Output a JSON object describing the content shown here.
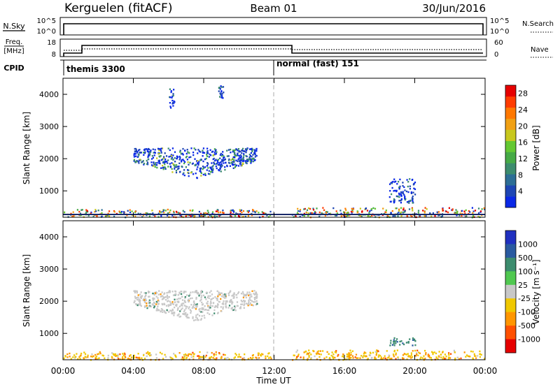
{
  "header": {
    "station": "Kerguelen (fitACF)",
    "beam": "Beam 01",
    "date": "30/Jun/2016"
  },
  "status_panels": {
    "nsky": {
      "label": "N.Sky",
      "tick_top": "10^5",
      "tick_bottom": "10^0",
      "right_label": "N.Search",
      "right_tick_top": "10^5",
      "right_tick_bottom": "10^0"
    },
    "freq": {
      "label_line1": "Freq.",
      "label_line2": "[MHz]",
      "tick_top": "18",
      "tick_bottom": "8",
      "right_label": "Nave",
      "right_tick_top": "60",
      "right_tick_bottom": "0"
    },
    "cpid": {
      "label": "CPID",
      "segments": [
        {
          "name": "themis 3300",
          "start_hour": 0
        },
        {
          "name": "normal (fast) 151",
          "start_hour": 12
        }
      ]
    }
  },
  "chart_data": [
    {
      "type": "heatmap",
      "ylabel": "Slant Range [km]",
      "yticks": [
        "1000",
        "2000",
        "3000",
        "4000"
      ],
      "ylim": [
        180,
        4500
      ],
      "colorbar": {
        "label": "Power [dB]",
        "ticks": [
          "4",
          "8",
          "12",
          "16",
          "20",
          "24",
          "28"
        ],
        "range": [
          0,
          30
        ],
        "colors": [
          "#0a28e6",
          "#1e46b4",
          "#2d6e96",
          "#3c8c6e",
          "#46aa46",
          "#64c832",
          "#c8c81e",
          "#f0a014",
          "#ff7800",
          "#ff3c00",
          "#e60000"
        ]
      },
      "echo_regions": [
        {
          "hours": [
            4.0,
            11.0
          ],
          "range_km": [
            1400,
            2350
          ],
          "level": "low-mid"
        },
        {
          "hours": [
            0.0,
            11.8
          ],
          "range_km": [
            200,
            450
          ],
          "level": "mixed"
        },
        {
          "hours": [
            13.0,
            24.0
          ],
          "range_km": [
            200,
            500
          ],
          "level": "mixed"
        },
        {
          "hours": [
            18.5,
            20.0
          ],
          "range_km": [
            650,
            1400
          ],
          "level": "low"
        },
        {
          "hours": [
            6.0,
            6.3
          ],
          "range_km": [
            3600,
            4200
          ],
          "level": "low"
        },
        {
          "hours": [
            8.8,
            9.1
          ],
          "range_km": [
            3900,
            4300
          ],
          "level": "low"
        }
      ]
    },
    {
      "type": "heatmap",
      "ylabel": "Slant Range [km]",
      "yticks": [
        "1000",
        "2000",
        "3000",
        "4000"
      ],
      "ylim": [
        180,
        4500
      ],
      "xlabel": "Time UT",
      "xticks": [
        "00:00",
        "04:00",
        "08:00",
        "12:00",
        "16:00",
        "20:00",
        "00:00"
      ],
      "xlim": [
        0,
        24
      ],
      "colorbar": {
        "label": "Velocity [m s⁻¹]",
        "ticks": [
          "1000",
          "500",
          "100",
          "25",
          "-25",
          "-100",
          "-500",
          "-1000"
        ],
        "colors": [
          "#2030c0",
          "#2a5aa0",
          "#3c8c6e",
          "#50c850",
          "#c8c8c8",
          "#f0c800",
          "#ff9600",
          "#ff5000",
          "#e60000"
        ]
      },
      "echo_regions": [
        {
          "hours": [
            4.0,
            11.0
          ],
          "range_km": [
            1400,
            2350
          ],
          "level": "ground scatter"
        },
        {
          "hours": [
            0.0,
            11.8
          ],
          "range_km": [
            200,
            450
          ],
          "level": "negative"
        },
        {
          "hours": [
            13.0,
            24.0
          ],
          "range_km": [
            200,
            500
          ],
          "level": "negative"
        },
        {
          "hours": [
            18.5,
            20.0
          ],
          "range_km": [
            650,
            900
          ],
          "level": "positive"
        }
      ]
    }
  ]
}
